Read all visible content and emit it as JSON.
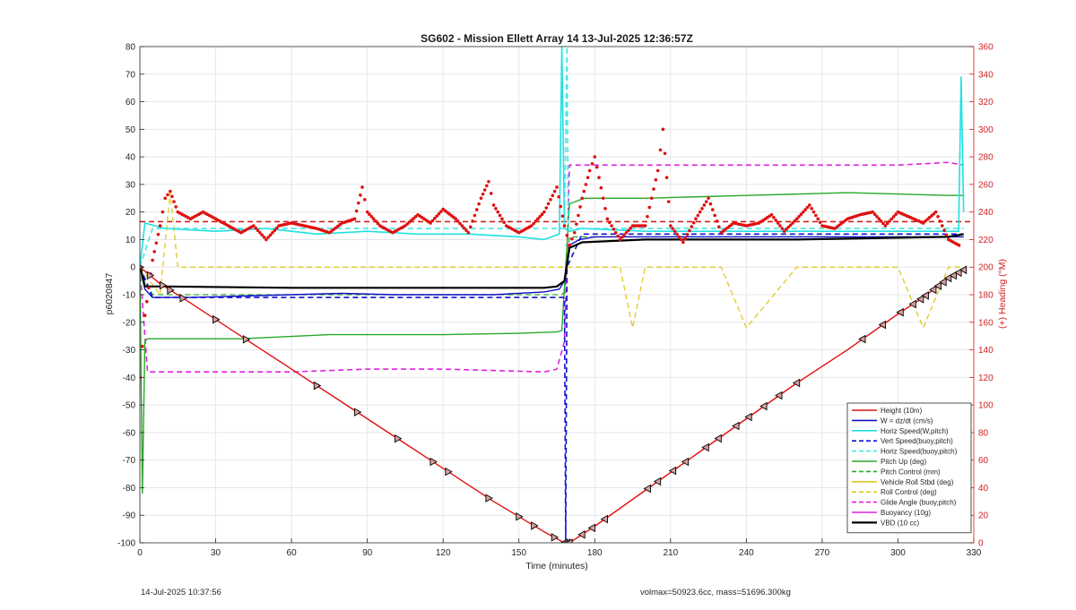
{
  "chart_data": {
    "type": "line",
    "title": "SG602 - Mission Ellett Array 14 13-Jul-2025 12:36:57Z",
    "xlabel": "Time (minutes)",
    "ylabel": "p6020847",
    "y2label": "(+) Heading (°M)",
    "xlim": [
      0,
      330
    ],
    "ylim": [
      -100,
      80
    ],
    "y2lim": [
      0,
      360
    ],
    "xticks": [
      "0",
      "30",
      "60",
      "90",
      "120",
      "150",
      "180",
      "210",
      "240",
      "270",
      "300",
      "330"
    ],
    "yticks": [
      "80",
      "70",
      "60",
      "50",
      "40",
      "30",
      "20",
      "10",
      "0",
      "-10",
      "-20",
      "-30",
      "-40",
      "-50",
      "-60",
      "-70",
      "-80",
      "-90",
      "-100"
    ],
    "y2ticks": [
      "360",
      "340",
      "320",
      "300",
      "280",
      "260",
      "240",
      "220",
      "200",
      "180",
      "160",
      "140",
      "120",
      "100",
      "80",
      "60",
      "40",
      "20",
      "0"
    ],
    "grid": true,
    "legend_position": "bottom-right",
    "series": [
      {
        "name": "Height (10m)",
        "color": "#e01010",
        "style": "solid",
        "width": 1.4,
        "x": [
          0,
          8,
          20,
          40,
          60,
          80,
          100,
          120,
          140,
          160,
          168,
          170,
          180,
          200,
          220,
          240,
          260,
          280,
          300,
          310,
          320,
          326
        ],
        "y": [
          0,
          -6,
          -13,
          -25,
          -37,
          -49,
          -61,
          -73,
          -85,
          -96,
          -100,
          -100,
          -94,
          -81,
          -68,
          -55,
          -42,
          -30,
          -17,
          -11,
          -4,
          -1
        ],
        "markers": [
          0,
          4,
          9,
          12,
          17,
          30,
          42,
          70,
          86,
          102,
          116,
          122,
          138,
          150,
          156,
          164,
          168,
          169,
          170,
          175,
          179,
          184,
          201,
          205,
          211,
          216,
          224,
          229,
          236,
          241,
          247,
          253,
          260,
          286,
          294,
          301,
          306,
          309,
          311,
          314,
          316,
          318,
          320,
          322,
          324,
          326
        ]
      },
      {
        "name": "W = dz/dt (cm/s)",
        "color": "#1010c8",
        "style": "solid",
        "width": 1.4,
        "x": [
          0,
          2,
          5,
          20,
          40,
          60,
          80,
          100,
          120,
          140,
          160,
          166,
          168,
          170,
          174,
          180,
          200,
          220,
          240,
          260,
          280,
          300,
          320,
          326
        ],
        "y": [
          0,
          -8,
          -11,
          -11,
          -10.5,
          -10,
          -9.5,
          -10,
          -10,
          -10,
          -9,
          -8,
          -5,
          8,
          10,
          11,
          11,
          11,
          11,
          11,
          11,
          11,
          11,
          11
        ]
      },
      {
        "name": "Horiz Speed(W,pitch)",
        "color": "#20e0e0",
        "style": "solid",
        "width": 1.6,
        "x": [
          0,
          2,
          10,
          30,
          50,
          70,
          90,
          110,
          130,
          150,
          160,
          166,
          167,
          168,
          170,
          175,
          200,
          220,
          240,
          260,
          280,
          300,
          320,
          324,
          325,
          326
        ],
        "y": [
          0,
          16,
          14,
          13,
          14,
          12,
          13,
          12,
          12,
          11,
          10,
          12,
          80,
          14,
          13,
          14,
          13,
          13,
          13,
          13,
          13,
          13,
          13,
          13,
          69,
          20
        ]
      },
      {
        "name": "Vert Speed(buoy,pitch)",
        "color": "#1010d0",
        "style": "dashed",
        "width": 1.6,
        "x": [
          0,
          5,
          168,
          168.5,
          169,
          175,
          326
        ],
        "y": [
          0,
          -11,
          -11,
          -100,
          0,
          12,
          12
        ]
      },
      {
        "name": "Horiz Speed(buoy,pitch)",
        "color": "#40e8e8",
        "style": "dashed",
        "width": 1.6,
        "x": [
          0,
          5,
          168,
          169,
          169.5,
          175,
          326
        ],
        "y": [
          0,
          14,
          14,
          80,
          14,
          14,
          14
        ]
      },
      {
        "name": "Pitch Up (deg)",
        "color": "#28a828",
        "style": "solid",
        "width": 1.4,
        "x": [
          0,
          1,
          2,
          3,
          8,
          40,
          75,
          120,
          150,
          165,
          167,
          170,
          176,
          200,
          240,
          280,
          320,
          326
        ],
        "y": [
          0,
          -82,
          -27,
          -26,
          -26,
          -26,
          -24.5,
          -24.5,
          -24,
          -23.5,
          -23,
          23,
          25,
          25,
          26,
          27,
          26,
          26
        ]
      },
      {
        "name": "Pitch Control (mm)",
        "color": "#28a828",
        "style": "dashed",
        "width": 1.3,
        "x": [
          0,
          5,
          167,
          168,
          170,
          326
        ],
        "y": [
          0,
          -10,
          -10,
          -9,
          11,
          11
        ]
      },
      {
        "name": "Vehicle Roll Stbd (deg)",
        "color": "#e0c820",
        "style": "solid",
        "width": 1.3,
        "x": [
          0,
          8,
          10,
          12,
          20,
          50,
          80,
          85,
          87,
          90,
          120,
          140,
          145,
          148,
          150,
          160,
          166,
          170,
          175,
          180,
          190,
          200,
          205,
          210,
          215,
          230,
          240,
          250,
          260,
          280,
          300,
          310,
          315,
          320,
          326
        ],
        "y": [
          0,
          -4,
          -4,
          28,
          -5,
          -5,
          -5,
          -4,
          8,
          -4,
          -4,
          -4,
          8,
          -4,
          -3,
          -3,
          -3,
          0,
          0,
          -2,
          -2,
          -2,
          -12,
          -2,
          -2,
          -12,
          -2,
          -2,
          -12,
          -2,
          -12,
          -2,
          -12,
          -2,
          0
        ]
      },
      {
        "name": "Roll Control (deg)",
        "color": "#e0c820",
        "style": "dashed",
        "width": 1.3,
        "x": [
          0,
          8,
          12,
          15,
          20,
          60,
          100,
          130,
          160,
          170,
          180,
          190,
          195,
          200,
          210,
          230,
          240,
          260,
          280,
          300,
          310,
          320,
          326
        ],
        "y": [
          0,
          -10,
          27,
          0,
          0,
          0,
          0,
          0,
          0,
          0,
          0,
          0,
          -22,
          0,
          0,
          0,
          -22,
          0,
          0,
          0,
          -22,
          0,
          0
        ]
      },
      {
        "name": "Glide Angle (buoy,pitch)",
        "color": "#e020e0",
        "style": "dashed",
        "width": 1.6,
        "x": [
          0,
          3,
          20,
          60,
          90,
          120,
          160,
          165,
          168,
          170,
          180,
          220,
          260,
          300,
          320,
          326
        ],
        "y": [
          0,
          -38,
          -38,
          -38,
          -37,
          -37,
          -38,
          -37,
          -27,
          37,
          37,
          37,
          37,
          37,
          38,
          37
        ]
      },
      {
        "name": "Buoyancy (10g)",
        "color": "#e020e0",
        "style": "solid",
        "width": 1.6,
        "x": [],
        "y": []
      },
      {
        "name": "VBD (10 cc)",
        "color": "#000000",
        "style": "solid",
        "width": 2.2,
        "x": [
          0,
          1,
          2,
          3,
          10,
          60,
          120,
          160,
          165,
          168,
          170,
          175,
          200,
          260,
          320,
          326
        ],
        "y": [
          0,
          -3,
          -7,
          -7,
          -7,
          -7.5,
          -7.5,
          -7.5,
          -7,
          -5,
          7,
          9,
          10,
          10,
          11,
          12
        ]
      }
    ],
    "heading_series": {
      "name": "(+) Heading (°M)",
      "color": "#e01010",
      "axis": "right",
      "x": [
        0,
        2,
        5,
        8,
        10,
        12,
        15,
        20,
        25,
        30,
        35,
        40,
        45,
        50,
        55,
        60,
        65,
        70,
        75,
        80,
        85,
        88,
        90,
        95,
        100,
        105,
        110,
        115,
        120,
        125,
        130,
        135,
        138,
        140,
        145,
        150,
        155,
        160,
        165,
        168,
        170,
        172,
        175,
        178,
        180,
        185,
        190,
        195,
        200,
        205,
        207,
        210,
        215,
        220,
        225,
        230,
        235,
        240,
        245,
        250,
        255,
        260,
        265,
        270,
        275,
        280,
        285,
        290,
        295,
        300,
        305,
        310,
        315,
        320,
        325
      ],
      "y": [
        120,
        165,
        205,
        230,
        250,
        255,
        240,
        235,
        240,
        235,
        230,
        225,
        230,
        220,
        230,
        232,
        230,
        228,
        225,
        232,
        235,
        258,
        240,
        230,
        225,
        230,
        238,
        232,
        242,
        235,
        225,
        250,
        262,
        245,
        230,
        225,
        230,
        240,
        258,
        230,
        216,
        225,
        250,
        270,
        280,
        235,
        220,
        230,
        230,
        270,
        300,
        230,
        218,
        235,
        250,
        225,
        232,
        230,
        232,
        238,
        226,
        235,
        245,
        230,
        228,
        235,
        238,
        240,
        230,
        240,
        236,
        232,
        240,
        220,
        215
      ]
    },
    "heading_reference": {
      "color": "#d02020",
      "style": "dashed",
      "y": 233
    }
  },
  "footer": {
    "left": "14-Jul-2025 10:37:56",
    "right": "volmax=50923.6cc, mass=51696.300kg"
  }
}
